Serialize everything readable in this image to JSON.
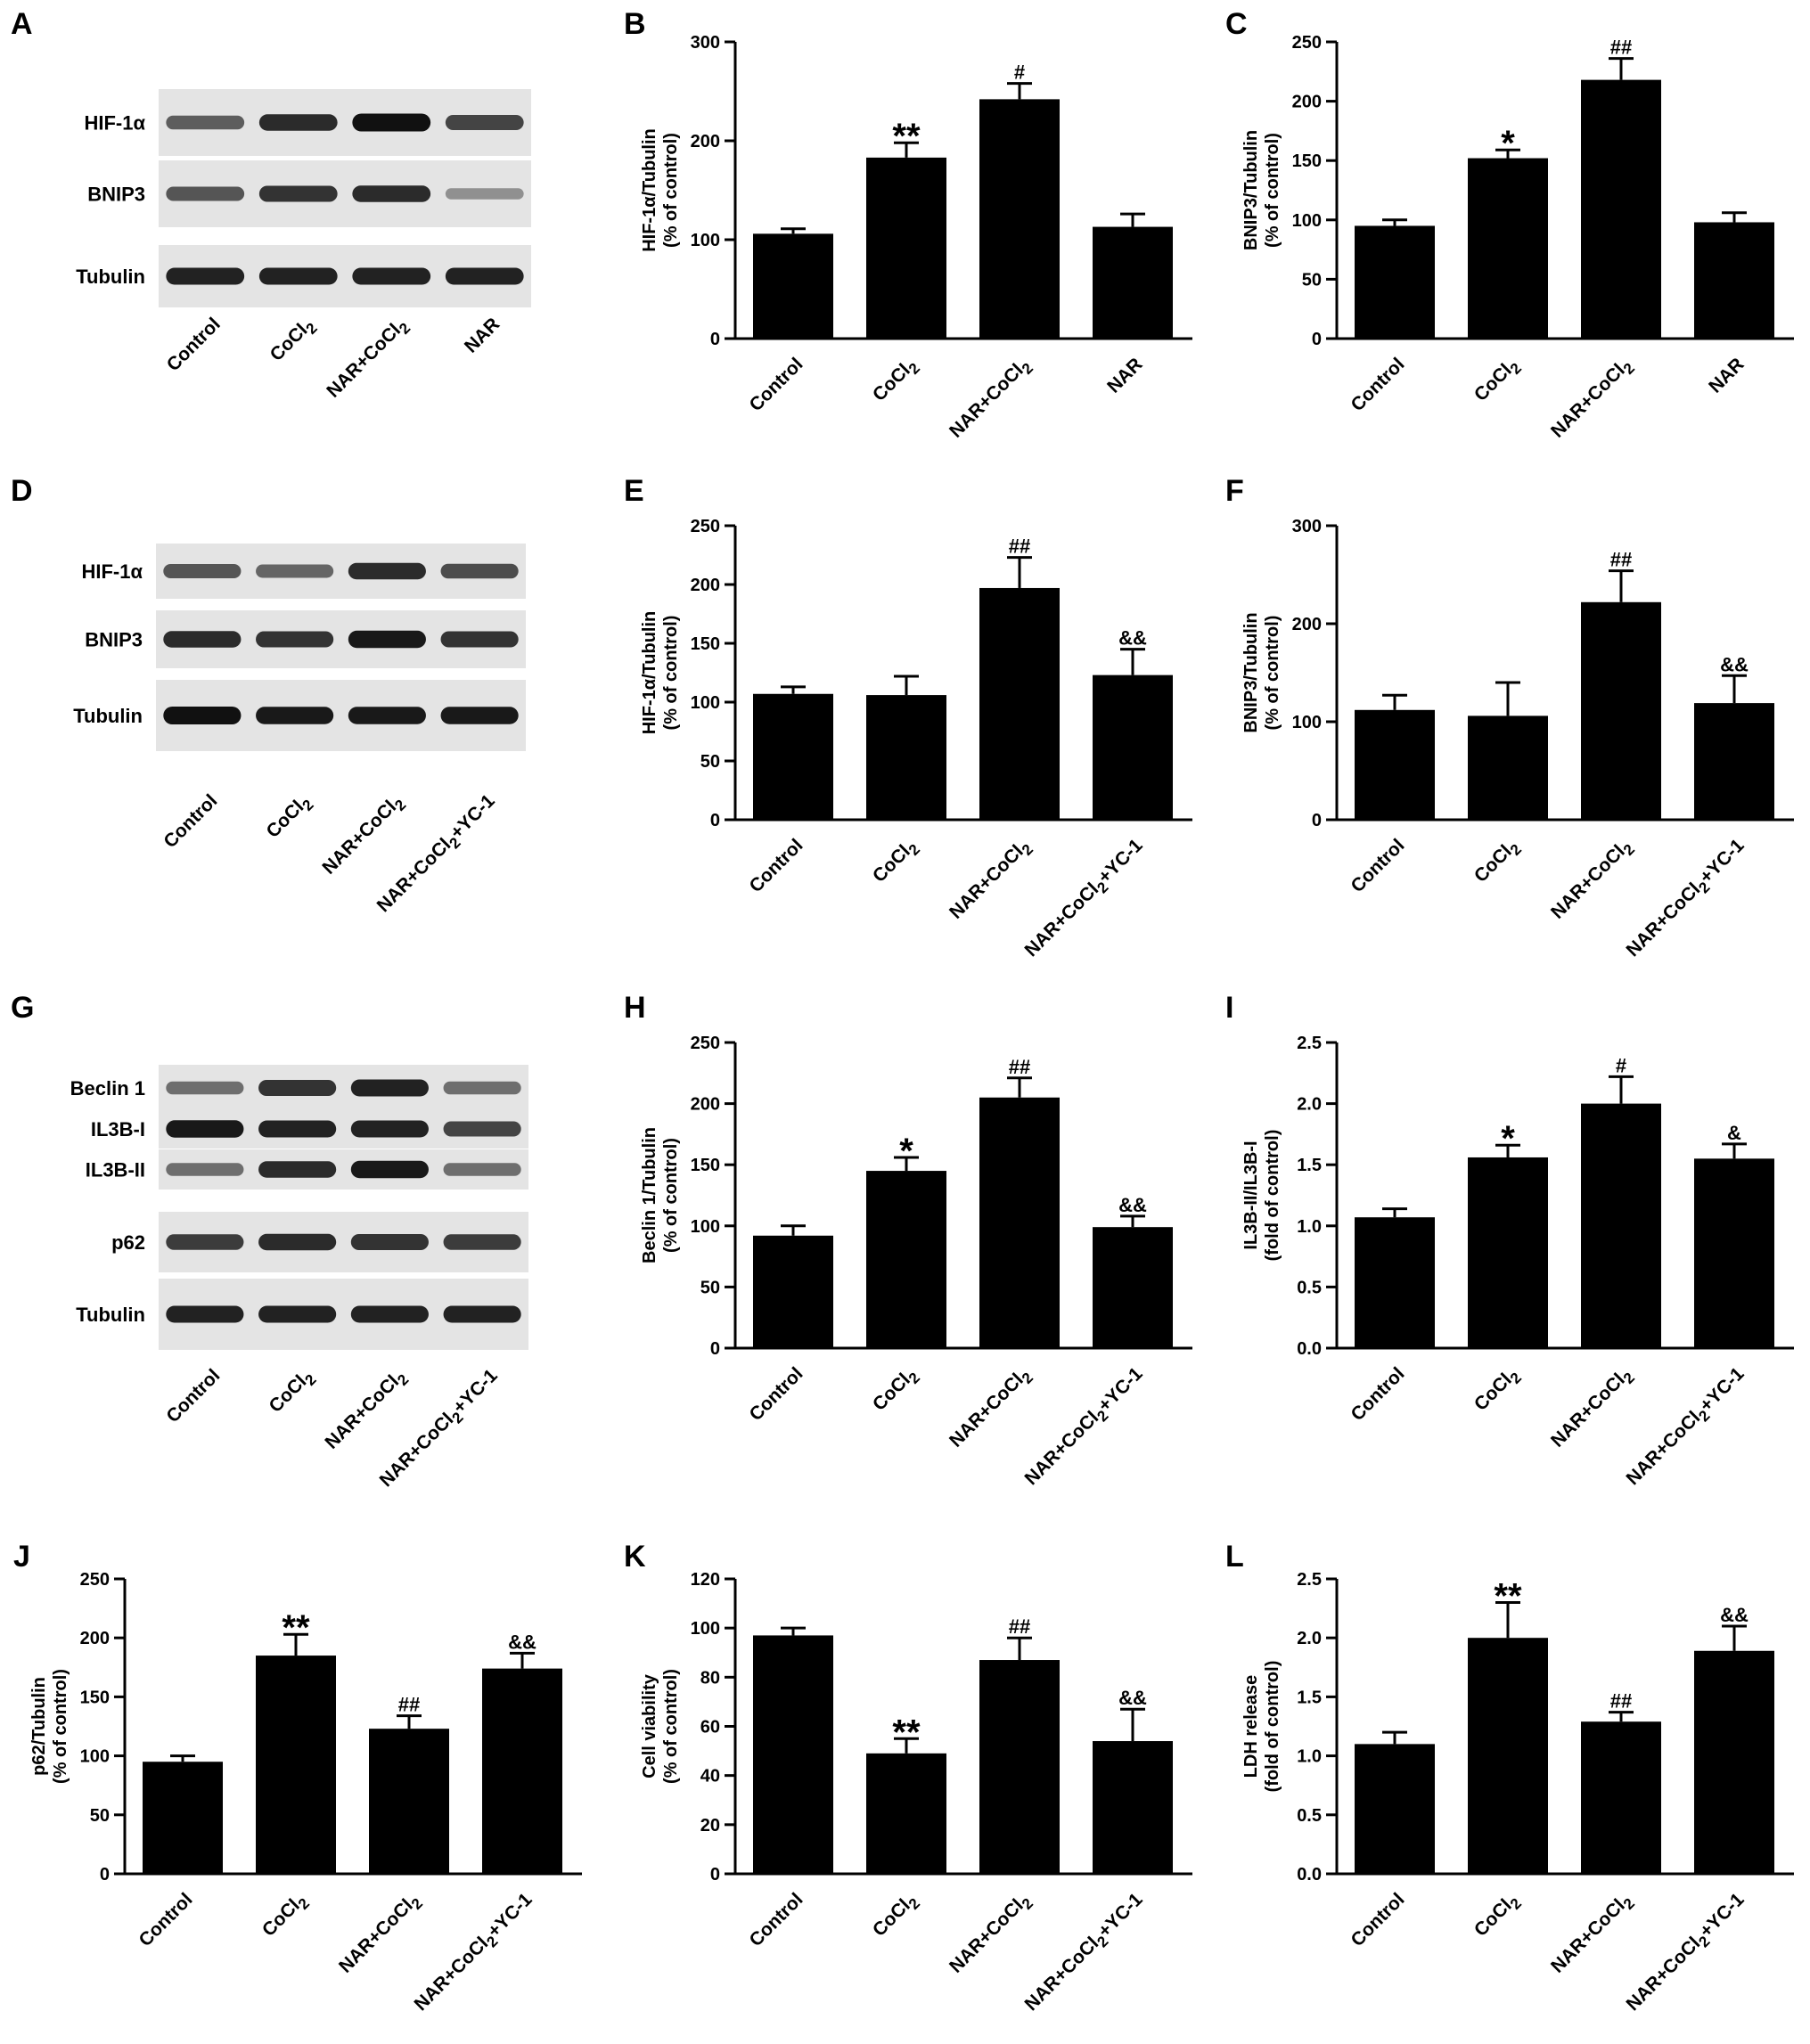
{
  "blots": [
    {
      "letter": "A",
      "lanes": [
        "Control",
        "CoCl2",
        "NAR+CoCl2",
        "NAR"
      ],
      "rows": [
        {
          "label": "HIF-1α",
          "intensity": [
            0.55,
            0.85,
            1.0,
            0.7
          ]
        },
        {
          "label": "BNIP3",
          "intensity": [
            0.6,
            0.8,
            0.85,
            0.25
          ]
        },
        {
          "label": "Tubulin",
          "intensity": [
            0.9,
            0.9,
            0.9,
            0.9
          ]
        }
      ]
    },
    {
      "letter": "D",
      "lanes": [
        "Control",
        "CoCl2",
        "NAR+CoCl2",
        "NAR+CoCl2+YC-1"
      ],
      "rows": [
        {
          "label": "HIF-1α",
          "intensity": [
            0.6,
            0.5,
            0.85,
            0.65
          ]
        },
        {
          "label": "BNIP3",
          "intensity": [
            0.85,
            0.8,
            0.95,
            0.8
          ]
        },
        {
          "label": "Tubulin",
          "intensity": [
            1.0,
            0.95,
            0.95,
            0.95
          ]
        }
      ]
    },
    {
      "letter": "G",
      "lanes": [
        "Control",
        "CoCl2",
        "NAR+CoCl2",
        "NAR+CoCl2+YC-1"
      ],
      "rows": [
        {
          "label": "Beclin 1",
          "intensity": [
            0.45,
            0.8,
            0.9,
            0.45
          ]
        },
        {
          "label": "IL3B-I",
          "intensity": [
            0.95,
            0.9,
            0.9,
            0.7
          ]
        },
        {
          "label": "IL3B-II",
          "intensity": [
            0.45,
            0.85,
            0.95,
            0.45
          ]
        },
        {
          "label": "p62",
          "intensity": [
            0.75,
            0.85,
            0.8,
            0.75
          ]
        },
        {
          "label": "Tubulin",
          "intensity": [
            0.9,
            0.9,
            0.9,
            0.9
          ]
        }
      ]
    }
  ],
  "chart_data": [
    {
      "letter": "B",
      "type": "bar",
      "ylabel": [
        "HIF-1α/Tubulin",
        "(% of control)"
      ],
      "categories": [
        "Control",
        "CoCl2",
        "NAR+CoCl2",
        "NAR"
      ],
      "values": [
        106,
        183,
        242,
        113
      ],
      "errors": [
        5,
        15,
        16,
        13
      ],
      "marks": [
        "",
        "**",
        "#",
        ""
      ],
      "ylim": [
        0,
        300
      ],
      "yticks": [
        0,
        100,
        200,
        300
      ],
      "tick_decimals": 0
    },
    {
      "letter": "C",
      "type": "bar",
      "ylabel": [
        "BNIP3/Tubulin",
        "(% of control)"
      ],
      "categories": [
        "Control",
        "CoCl2",
        "NAR+CoCl2",
        "NAR"
      ],
      "values": [
        95,
        152,
        218,
        98
      ],
      "errors": [
        5,
        7,
        18,
        8
      ],
      "marks": [
        "",
        "*",
        "##",
        ""
      ],
      "ylim": [
        0,
        250
      ],
      "yticks": [
        0,
        50,
        100,
        150,
        200,
        250
      ],
      "tick_decimals": 0
    },
    {
      "letter": "E",
      "type": "bar",
      "ylabel": [
        "HIF-1α/Tubulin",
        "(% of control)"
      ],
      "categories": [
        "Control",
        "CoCl2",
        "NAR+CoCl2",
        "NAR+CoCl2+YC-1"
      ],
      "values": [
        107,
        106,
        197,
        123
      ],
      "errors": [
        6,
        16,
        26,
        22
      ],
      "marks": [
        "",
        "",
        "##",
        "&&"
      ],
      "ylim": [
        0,
        250
      ],
      "yticks": [
        0,
        50,
        100,
        150,
        200,
        250
      ],
      "tick_decimals": 0
    },
    {
      "letter": "F",
      "type": "bar",
      "ylabel": [
        "BNIP3/Tubulin",
        "(% of control)"
      ],
      "categories": [
        "Control",
        "CoCl2",
        "NAR+CoCl2",
        "NAR+CoCl2+YC-1"
      ],
      "values": [
        112,
        106,
        222,
        119
      ],
      "errors": [
        15,
        34,
        32,
        28
      ],
      "marks": [
        "",
        "",
        "##",
        "&&"
      ],
      "ylim": [
        0,
        300
      ],
      "yticks": [
        0,
        100,
        200,
        300
      ],
      "tick_decimals": 0
    },
    {
      "letter": "H",
      "type": "bar",
      "ylabel": [
        "Beclin 1/Tubulin",
        "(% of control)"
      ],
      "categories": [
        "Control",
        "CoCl2",
        "NAR+CoCl2",
        "NAR+CoCl2+YC-1"
      ],
      "values": [
        92,
        145,
        205,
        99
      ],
      "errors": [
        8,
        11,
        16,
        9
      ],
      "marks": [
        "",
        "*",
        "##",
        "&&"
      ],
      "ylim": [
        0,
        250
      ],
      "yticks": [
        0,
        50,
        100,
        150,
        200,
        250
      ],
      "tick_decimals": 0
    },
    {
      "letter": "I",
      "type": "bar",
      "ylabel": [
        "IL3B-II/IL3B-I",
        "(fold of control)"
      ],
      "categories": [
        "Control",
        "CoCl2",
        "NAR+CoCl2",
        "NAR+CoCl2+YC-1"
      ],
      "values": [
        1.07,
        1.56,
        2.0,
        1.55
      ],
      "errors": [
        0.07,
        0.1,
        0.22,
        0.12
      ],
      "marks": [
        "",
        "*",
        "#",
        "&"
      ],
      "ylim": [
        0,
        2.5
      ],
      "yticks": [
        0,
        0.5,
        1.0,
        1.5,
        2.0,
        2.5
      ],
      "tick_decimals": 1
    },
    {
      "letter": "J",
      "type": "bar",
      "ylabel": [
        "p62/Tubulin",
        "(% of control)"
      ],
      "categories": [
        "Control",
        "CoCl2",
        "NAR+CoCl2",
        "NAR+CoCl2+YC-1"
      ],
      "values": [
        95,
        185,
        123,
        174
      ],
      "errors": [
        5,
        18,
        11,
        13
      ],
      "marks": [
        "",
        "**",
        "##",
        "&&"
      ],
      "ylim": [
        0,
        250
      ],
      "yticks": [
        0,
        50,
        100,
        150,
        200,
        250
      ],
      "tick_decimals": 0
    },
    {
      "letter": "K",
      "type": "bar",
      "ylabel": [
        "Cell viability",
        "(% of control)"
      ],
      "categories": [
        "Control",
        "CoCl2",
        "NAR+CoCl2",
        "NAR+CoCl2+YC-1"
      ],
      "values": [
        97,
        49,
        87,
        54
      ],
      "errors": [
        3,
        6,
        9,
        13
      ],
      "marks": [
        "",
        "**",
        "##",
        "&&"
      ],
      "ylim": [
        0,
        120
      ],
      "yticks": [
        0,
        20,
        40,
        60,
        80,
        100,
        120
      ],
      "tick_decimals": 0
    },
    {
      "letter": "L",
      "type": "bar",
      "ylabel": [
        "LDH release",
        "(fold of control)"
      ],
      "categories": [
        "Control",
        "CoCl2",
        "NAR+CoCl2",
        "NAR+CoCl2+YC-1"
      ],
      "values": [
        1.1,
        2.0,
        1.29,
        1.89
      ],
      "errors": [
        0.1,
        0.3,
        0.08,
        0.21
      ],
      "marks": [
        "",
        "**",
        "##",
        "&&"
      ],
      "ylim": [
        0,
        2.5
      ],
      "yticks": [
        0,
        0.5,
        1.0,
        1.5,
        2.0,
        2.5
      ],
      "tick_decimals": 1
    }
  ]
}
